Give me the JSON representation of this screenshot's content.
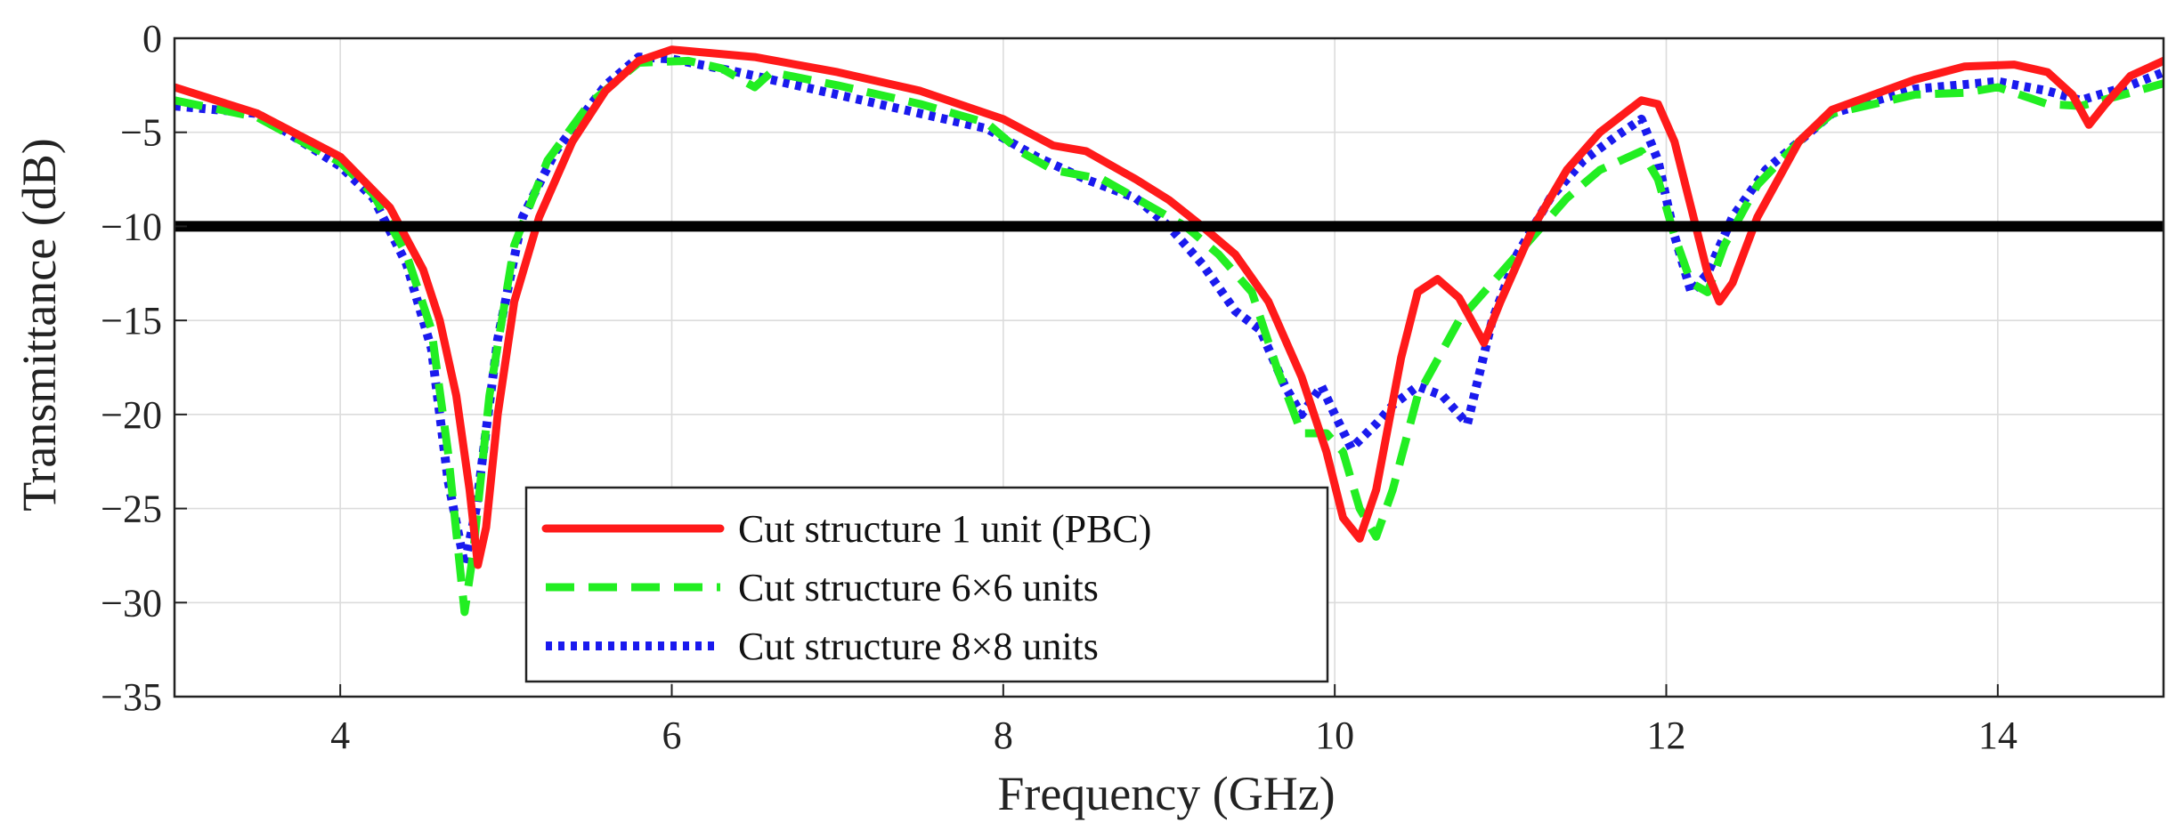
{
  "chart_data": {
    "type": "line",
    "title": "",
    "xlabel": "Frequency (GHz)",
    "ylabel": "Transmittance (dB)",
    "xlim": [
      3,
      15
    ],
    "ylim": [
      -35,
      0
    ],
    "xticks": [
      4,
      6,
      8,
      10,
      12,
      14
    ],
    "yticks": [
      0,
      -5,
      -10,
      -15,
      -20,
      -25,
      -30,
      -35
    ],
    "xtick_labels": [
      "4",
      "6",
      "8",
      "10",
      "12",
      "14"
    ],
    "ytick_labels": [
      "0",
      "−5",
      "−10",
      "−15",
      "−20",
      "−25",
      "−30",
      "−35"
    ],
    "grid": true,
    "legend_position": "lower-left",
    "threshold": {
      "y": -10,
      "color": "#000000"
    },
    "series": [
      {
        "name": "Cut structure 1 unit (PBC)",
        "color": "#ff1a1a",
        "style": "solid",
        "points": [
          [
            3.0,
            -2.6
          ],
          [
            3.5,
            -4.0
          ],
          [
            4.0,
            -6.3
          ],
          [
            4.3,
            -9.0
          ],
          [
            4.5,
            -12.3
          ],
          [
            4.6,
            -15.0
          ],
          [
            4.7,
            -19.0
          ],
          [
            4.78,
            -24.0
          ],
          [
            4.83,
            -28.0
          ],
          [
            4.88,
            -26.0
          ],
          [
            4.95,
            -20.0
          ],
          [
            5.05,
            -14.0
          ],
          [
            5.2,
            -9.5
          ],
          [
            5.4,
            -5.5
          ],
          [
            5.6,
            -2.8
          ],
          [
            5.8,
            -1.2
          ],
          [
            6.0,
            -0.6
          ],
          [
            6.5,
            -1.0
          ],
          [
            7.0,
            -1.8
          ],
          [
            7.5,
            -2.8
          ],
          [
            8.0,
            -4.3
          ],
          [
            8.3,
            -5.7
          ],
          [
            8.5,
            -6.0
          ],
          [
            8.8,
            -7.5
          ],
          [
            9.0,
            -8.6
          ],
          [
            9.2,
            -10.0
          ],
          [
            9.4,
            -11.5
          ],
          [
            9.6,
            -14.0
          ],
          [
            9.8,
            -18.0
          ],
          [
            9.95,
            -22.0
          ],
          [
            10.05,
            -25.5
          ],
          [
            10.15,
            -26.6
          ],
          [
            10.25,
            -24.0
          ],
          [
            10.4,
            -17.0
          ],
          [
            10.5,
            -13.5
          ],
          [
            10.62,
            -12.8
          ],
          [
            10.75,
            -13.8
          ],
          [
            10.9,
            -16.2
          ],
          [
            11.0,
            -14.0
          ],
          [
            11.2,
            -10.0
          ],
          [
            11.4,
            -7.0
          ],
          [
            11.6,
            -5.0
          ],
          [
            11.85,
            -3.3
          ],
          [
            11.95,
            -3.5
          ],
          [
            12.05,
            -5.5
          ],
          [
            12.15,
            -9.0
          ],
          [
            12.25,
            -12.5
          ],
          [
            12.32,
            -14.0
          ],
          [
            12.4,
            -13.0
          ],
          [
            12.55,
            -9.5
          ],
          [
            12.8,
            -5.5
          ],
          [
            13.0,
            -3.8
          ],
          [
            13.5,
            -2.2
          ],
          [
            13.8,
            -1.5
          ],
          [
            14.1,
            -1.4
          ],
          [
            14.3,
            -1.8
          ],
          [
            14.45,
            -3.0
          ],
          [
            14.55,
            -4.6
          ],
          [
            14.65,
            -3.5
          ],
          [
            14.8,
            -2.0
          ],
          [
            15.0,
            -1.2
          ]
        ]
      },
      {
        "name": "Cut structure 6×6 units",
        "color": "#22ee22",
        "style": "dashed",
        "points": [
          [
            3.0,
            -3.3
          ],
          [
            3.5,
            -4.2
          ],
          [
            4.0,
            -6.6
          ],
          [
            4.2,
            -8.3
          ],
          [
            4.4,
            -11.5
          ],
          [
            4.55,
            -15.5
          ],
          [
            4.65,
            -22.0
          ],
          [
            4.75,
            -30.5
          ],
          [
            4.8,
            -27.5
          ],
          [
            4.9,
            -19.0
          ],
          [
            5.05,
            -11.0
          ],
          [
            5.25,
            -6.5
          ],
          [
            5.5,
            -3.5
          ],
          [
            5.8,
            -1.3
          ],
          [
            6.1,
            -1.2
          ],
          [
            6.3,
            -1.6
          ],
          [
            6.5,
            -2.6
          ],
          [
            6.6,
            -1.8
          ],
          [
            7.0,
            -2.5
          ],
          [
            7.5,
            -3.5
          ],
          [
            7.9,
            -4.5
          ],
          [
            8.1,
            -6.0
          ],
          [
            8.3,
            -7.0
          ],
          [
            8.6,
            -7.5
          ],
          [
            8.9,
            -9.0
          ],
          [
            9.1,
            -10.0
          ],
          [
            9.3,
            -11.5
          ],
          [
            9.5,
            -13.5
          ],
          [
            9.65,
            -17.5
          ],
          [
            9.8,
            -21.0
          ],
          [
            9.95,
            -21.0
          ],
          [
            10.05,
            -22.0
          ],
          [
            10.15,
            -25.0
          ],
          [
            10.25,
            -26.5
          ],
          [
            10.35,
            -24.0
          ],
          [
            10.5,
            -19.0
          ],
          [
            10.75,
            -15.0
          ],
          [
            11.0,
            -12.5
          ],
          [
            11.2,
            -10.5
          ],
          [
            11.4,
            -8.5
          ],
          [
            11.6,
            -7.0
          ],
          [
            11.85,
            -6.0
          ],
          [
            11.95,
            -7.5
          ],
          [
            12.05,
            -10.5
          ],
          [
            12.15,
            -13.0
          ],
          [
            12.25,
            -13.5
          ],
          [
            12.35,
            -11.0
          ],
          [
            12.55,
            -7.8
          ],
          [
            12.8,
            -5.5
          ],
          [
            13.0,
            -4.0
          ],
          [
            13.5,
            -3.0
          ],
          [
            13.8,
            -2.9
          ],
          [
            14.0,
            -2.6
          ],
          [
            14.3,
            -3.5
          ],
          [
            14.5,
            -3.6
          ],
          [
            14.8,
            -2.9
          ],
          [
            15.0,
            -2.4
          ]
        ]
      },
      {
        "name": "Cut structure 8×8 units",
        "color": "#1a1aee",
        "style": "dotted",
        "points": [
          [
            3.0,
            -3.6
          ],
          [
            3.5,
            -4.0
          ],
          [
            4.0,
            -6.8
          ],
          [
            4.2,
            -8.5
          ],
          [
            4.4,
            -12.0
          ],
          [
            4.55,
            -16.5
          ],
          [
            4.65,
            -23.5
          ],
          [
            4.75,
            -28.0
          ],
          [
            4.82,
            -25.0
          ],
          [
            4.95,
            -16.0
          ],
          [
            5.1,
            -9.5
          ],
          [
            5.3,
            -6.0
          ],
          [
            5.6,
            -2.5
          ],
          [
            5.8,
            -1.0
          ],
          [
            6.0,
            -1.1
          ],
          [
            6.4,
            -1.8
          ],
          [
            6.6,
            -2.2
          ],
          [
            7.0,
            -3.0
          ],
          [
            7.5,
            -4.0
          ],
          [
            7.9,
            -4.8
          ],
          [
            8.2,
            -6.3
          ],
          [
            8.5,
            -7.5
          ],
          [
            8.8,
            -8.5
          ],
          [
            9.0,
            -10.0
          ],
          [
            9.2,
            -12.0
          ],
          [
            9.4,
            -14.5
          ],
          [
            9.55,
            -15.5
          ],
          [
            9.7,
            -18.5
          ],
          [
            9.8,
            -20.0
          ],
          [
            9.92,
            -18.5
          ],
          [
            10.0,
            -20.0
          ],
          [
            10.1,
            -21.8
          ],
          [
            10.25,
            -20.5
          ],
          [
            10.35,
            -19.5
          ],
          [
            10.5,
            -18.5
          ],
          [
            10.65,
            -19.0
          ],
          [
            10.8,
            -20.5
          ],
          [
            10.95,
            -15.0
          ],
          [
            11.1,
            -11.5
          ],
          [
            11.3,
            -8.5
          ],
          [
            11.5,
            -6.5
          ],
          [
            11.7,
            -5.2
          ],
          [
            11.85,
            -4.3
          ],
          [
            11.95,
            -6.5
          ],
          [
            12.05,
            -10.5
          ],
          [
            12.15,
            -13.5
          ],
          [
            12.25,
            -12.5
          ],
          [
            12.4,
            -9.5
          ],
          [
            12.6,
            -7.0
          ],
          [
            12.8,
            -5.5
          ],
          [
            13.0,
            -4.0
          ],
          [
            13.5,
            -2.7
          ],
          [
            14.0,
            -2.3
          ],
          [
            14.3,
            -2.8
          ],
          [
            14.5,
            -3.3
          ],
          [
            14.8,
            -2.5
          ],
          [
            15.0,
            -1.8
          ]
        ]
      }
    ]
  }
}
